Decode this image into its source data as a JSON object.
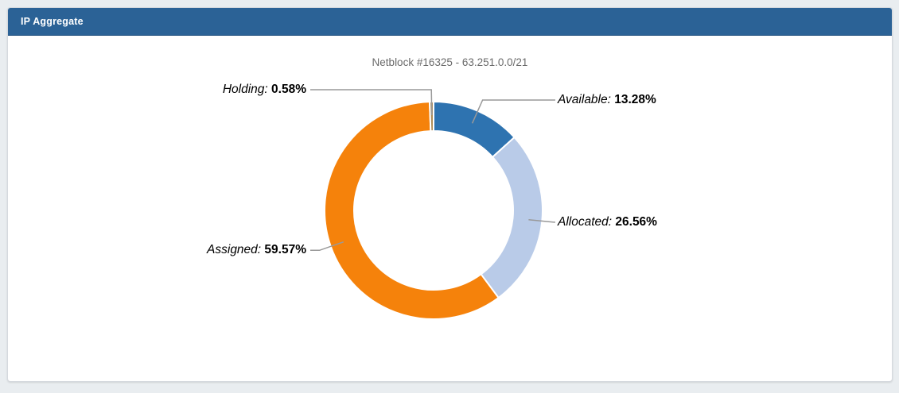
{
  "page": {
    "background": "#e9edf0"
  },
  "panel": {
    "title": "IP Aggregate",
    "header_color": "#2b6296"
  },
  "chart_data": {
    "type": "pie",
    "subtype": "donut",
    "title": "Netblock #16325 - 63.251.0.0/21",
    "title_color": "#6b6b6b",
    "legend_position": "none",
    "label_format": "{label}: {value}%",
    "direction": "clockwise",
    "start_angle_deg": 0,
    "leader_line_color": "#999999",
    "slice_border_color": "#ffffff",
    "slices": [
      {
        "label": "Available",
        "value": 13.28,
        "color": "#2e73b0"
      },
      {
        "label": "Allocated",
        "value": 26.56,
        "color": "#b9cbe8"
      },
      {
        "label": "Assigned",
        "value": 59.57,
        "color": "#f5820b"
      },
      {
        "label": "Holding",
        "value": 0.58,
        "color": "#b08d57"
      }
    ]
  }
}
